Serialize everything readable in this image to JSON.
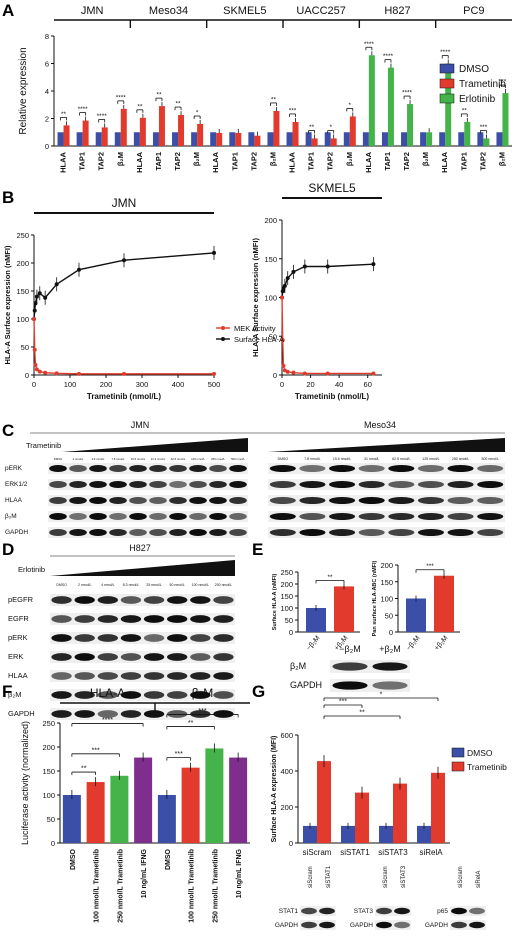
{
  "panel_labels": {
    "A": "A",
    "B": "B",
    "C": "C",
    "D": "D",
    "E": "E",
    "F": "F",
    "G": "G"
  },
  "colors": {
    "dmso": "#3b4fa8",
    "trametinib": "#e23b2e",
    "erlotinib": "#44b34a",
    "ifng": "#7e2f8e",
    "mek": "#e23b2e",
    "hla": "#111111"
  },
  "chart_data": [
    {
      "id": "A",
      "type": "bar",
      "ylabel": "Relative expression",
      "ylim": [
        0,
        8
      ],
      "yticks": [
        0,
        2,
        4,
        6,
        8
      ],
      "groups": [
        {
          "label": "JMN",
          "tick_labels": [
            "HLAA",
            "TAP1",
            "TAP2",
            "β₂M"
          ],
          "dmso": [
            1,
            1,
            1,
            1
          ],
          "treat": [
            1.5,
            1.85,
            1.35,
            2.7
          ],
          "treat_type": "trametinib",
          "sig": [
            "**",
            "****",
            "****",
            "****"
          ]
        },
        {
          "label": "Meso34",
          "tick_labels": [
            "HLAA",
            "TAP1",
            "TAP2",
            "β₂M"
          ],
          "dmso": [
            1,
            1,
            1,
            1
          ],
          "treat": [
            2.05,
            2.9,
            2.25,
            1.6
          ],
          "treat_type": "trametinib",
          "sig": [
            "**",
            "**",
            "**",
            "*"
          ]
        },
        {
          "label": "SKMEL5",
          "tick_labels": [
            "HLAA",
            "TAP1",
            "TAP2",
            "β₂M"
          ],
          "dmso": [
            1,
            1,
            1,
            1
          ],
          "treat": [
            0.95,
            0.95,
            0.75,
            2.55
          ],
          "treat_type": "trametinib",
          "sig": [
            "",
            "",
            "",
            "**"
          ]
        },
        {
          "label": "UACC257",
          "tick_labels": [
            "HLAA",
            "TAP1",
            "TAP2",
            "β₂M"
          ],
          "dmso": [
            1,
            1,
            1,
            1
          ],
          "treat": [
            1.75,
            0.55,
            0.55,
            2.15
          ],
          "treat_type": "trametinib",
          "sig": [
            "***",
            "**",
            "*",
            "*"
          ]
        },
        {
          "label": "H827",
          "tick_labels": [
            "HLAA",
            "TAP1",
            "TAP2",
            "β₂M"
          ],
          "dmso": [
            1,
            1,
            1,
            1
          ],
          "treat": [
            6.6,
            5.7,
            3.05,
            1.0
          ],
          "treat_type": "erlotinib",
          "sig": [
            "****",
            "****",
            "****",
            ""
          ]
        },
        {
          "label": "PC9",
          "tick_labels": [
            "HLAA",
            "TAP1",
            "TAP2",
            "β₂M"
          ],
          "dmso": [
            1,
            1,
            1,
            1
          ],
          "treat": [
            6.0,
            1.75,
            0.55,
            3.85
          ],
          "treat_type": "erlotinib",
          "sig": [
            "****",
            "**",
            "***",
            "***"
          ]
        }
      ],
      "legend": [
        "DMSO",
        "Trametinib",
        "Erlotinib"
      ]
    },
    {
      "id": "B1",
      "type": "line",
      "title": "JMN",
      "xlabel": "Trametinib (nmol/L)",
      "ylabel": "HLA-A Surface expression (nMFI)",
      "xlim": [
        0,
        500
      ],
      "ylim": [
        0,
        250
      ],
      "xticks": [
        0,
        100,
        200,
        300,
        400,
        500
      ],
      "yticks": [
        0,
        50,
        100,
        150,
        200,
        250
      ],
      "series": [
        {
          "name": "Surface HLA-A",
          "x": [
            0,
            2,
            4,
            8,
            16,
            31,
            63,
            125,
            250,
            500
          ],
          "y": [
            100,
            115,
            128,
            140,
            146,
            138,
            162,
            188,
            205,
            218
          ]
        },
        {
          "name": "MEK Activity",
          "x": [
            0,
            2,
            4,
            8,
            16,
            31,
            63,
            125,
            250,
            500
          ],
          "y": [
            100,
            45,
            18,
            10,
            6,
            4,
            3,
            2,
            2,
            2
          ]
        }
      ]
    },
    {
      "id": "B2",
      "type": "line",
      "title": "SKMEL5",
      "xlabel": "Trametinib (nmol/L)",
      "ylabel": "HLA-A Surface expression (nMFI)",
      "xlim": [
        0,
        70
      ],
      "ylim": [
        0,
        200
      ],
      "xticks": [
        0,
        20,
        40,
        60
      ],
      "yticks": [
        0,
        50,
        100,
        150,
        200
      ],
      "series": [
        {
          "name": "Surface HLA-A",
          "x": [
            0,
            0.5,
            1,
            2,
            4,
            8,
            16,
            32,
            64
          ],
          "y": [
            100,
            108,
            112,
            115,
            125,
            133,
            140,
            140,
            143
          ]
        },
        {
          "name": "MEK Activity",
          "x": [
            0,
            0.5,
            1,
            2,
            4,
            8,
            16,
            32,
            64
          ],
          "y": [
            100,
            45,
            12,
            6,
            4,
            3,
            2,
            2,
            2
          ]
        }
      ],
      "legend": [
        "MEK Activity",
        "Surface HLA-A"
      ]
    },
    {
      "id": "E1",
      "type": "bar",
      "ylabel": "Surface HLA-A (nMFI)",
      "ylim": [
        0,
        250
      ],
      "yticks": [
        0,
        50,
        100,
        150,
        200,
        250
      ],
      "categories": [
        "−β₂M",
        "+β₂M"
      ],
      "values": [
        100,
        190
      ],
      "sig": "**"
    },
    {
      "id": "E2",
      "type": "bar",
      "ylabel": "Pan surface HLA-ABC (nMFI)",
      "ylim": [
        0,
        200
      ],
      "yticks": [
        0,
        50,
        100,
        150,
        200
      ],
      "categories": [
        "−β₂M",
        "+β₂M"
      ],
      "values": [
        100,
        168
      ],
      "sig": "***"
    },
    {
      "id": "F",
      "type": "bar",
      "ylabel": "Luciferase activity (normalized)",
      "ylim": [
        0,
        250
      ],
      "yticks": [
        0,
        50,
        100,
        150,
        200,
        250
      ],
      "group_labels": [
        "HLA-A",
        "β₂M"
      ],
      "categories": [
        "DMSO",
        "100 nmol/L Trametinib",
        "250 nmol/L Trametinib",
        "10 ng/mL IFNG",
        "DMSO",
        "100 nmol/L Trametinib",
        "250 nmol/L Trametinib",
        "10 ng/mL IFNG"
      ],
      "values": [
        100,
        127,
        140,
        178,
        100,
        157,
        197,
        178
      ],
      "sig": [
        {
          "from": 0,
          "to": 1,
          "label": "**"
        },
        {
          "from": 0,
          "to": 2,
          "label": "***"
        },
        {
          "from": 0,
          "to": 3,
          "label": "****"
        },
        {
          "from": 4,
          "to": 5,
          "label": "***"
        },
        {
          "from": 4,
          "to": 6,
          "label": "**"
        },
        {
          "from": 4,
          "to": 7,
          "label": "***"
        }
      ]
    },
    {
      "id": "G",
      "type": "bar",
      "ylabel": "Surface HLA-A expression (MFI)",
      "ylim": [
        0,
        600
      ],
      "yticks": [
        0,
        200,
        400,
        600
      ],
      "categories": [
        "siScram",
        "siSTAT1",
        "siSTAT3",
        "siRelA"
      ],
      "dmso": [
        95,
        95,
        95,
        95
      ],
      "trametinib": [
        455,
        280,
        330,
        390
      ],
      "sig": [
        {
          "to": 1,
          "label": "***"
        },
        {
          "to": 2,
          "label": "**"
        },
        {
          "to": 3,
          "label": "*"
        }
      ],
      "legend": [
        "DMSO",
        "Trametinib"
      ]
    }
  ],
  "blots": {
    "C": {
      "drug_label": "Trametinib",
      "jmn_title": "JMN",
      "meso_title": "Meso34",
      "jmn_lanes": [
        "DMSO",
        "2 nmol/L",
        "3.9 nmol/L",
        "7.8 nmol/L",
        "15.6 nmol/L",
        "31.3 nmol/L",
        "62.5 nmol/L",
        "125 nmol/L",
        "250 nmol/L",
        "500 nmol/L"
      ],
      "meso_lanes": [
        "DMSO",
        "7.8 nmol/L",
        "15.6 nmol/L",
        "31 nmol/L",
        "62.5 nmol/L",
        "125 nmol/L",
        "250 nmol/L",
        "500 nmol/L"
      ],
      "rows": [
        "pERK",
        "ERK1/2",
        "HLAA",
        "β₂M",
        "GAPDH"
      ]
    },
    "D": {
      "drug_label": "Erlotinib",
      "title": "H827",
      "lanes": [
        "DMSO",
        "2 nmol/L",
        "4 nmol/L",
        "8.3 nmol/L",
        "25 nmol/L",
        "50 nmol/L",
        "100 nmol/L",
        "200 nmol/L"
      ],
      "rows": [
        "pEGFR",
        "EGFR",
        "pERK",
        "ERK",
        "HLAA",
        "β₂M",
        "GAPDH"
      ]
    },
    "E": {
      "lanes": [
        "−β₂M",
        "+β₂M"
      ],
      "rows": [
        "β₂M",
        "GAPDH"
      ]
    },
    "G": [
      {
        "lanes": [
          "siScram",
          "siSTAT1"
        ],
        "rows": [
          "STAT1",
          "GAPDH"
        ]
      },
      {
        "lanes": [
          "siScram",
          "siSTAT3"
        ],
        "rows": [
          "STAT3",
          "GAPDH"
        ]
      },
      {
        "lanes": [
          "siScram",
          "siRelA"
        ],
        "rows": [
          "p65",
          "GAPDH"
        ]
      }
    ]
  }
}
